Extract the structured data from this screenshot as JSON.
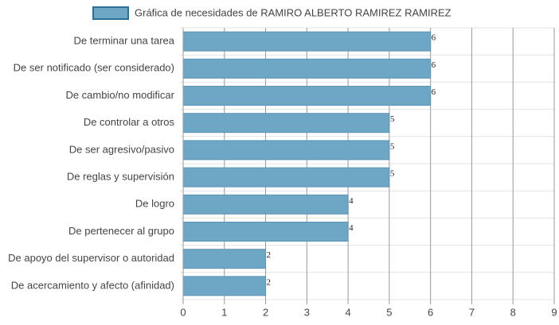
{
  "chart_data": {
    "type": "hbar",
    "categories": [
      "De terminar una tarea",
      "De ser notificado (ser considerado)",
      "De cambio/no modificar",
      "De controlar a otros",
      "De ser agresivo/pasivo",
      "De reglas y supervisión",
      "De logro",
      "De pertenecer al grupo",
      "De apoyo del supervisor o autoridad",
      "De acercamiento y afecto (afinidad)"
    ],
    "series": [
      {
        "name": "Gráfica de necesidades de RAMIRO ALBERTO RAMIREZ RAMIREZ",
        "color": "#6ea6c6",
        "values": [
          6,
          6,
          6,
          5,
          5,
          5,
          4,
          4,
          2,
          2
        ]
      }
    ],
    "xlim": [
      0,
      9
    ],
    "xticks": [
      0,
      1,
      2,
      3,
      4,
      5,
      6,
      7,
      8,
      9
    ],
    "grid": true
  }
}
